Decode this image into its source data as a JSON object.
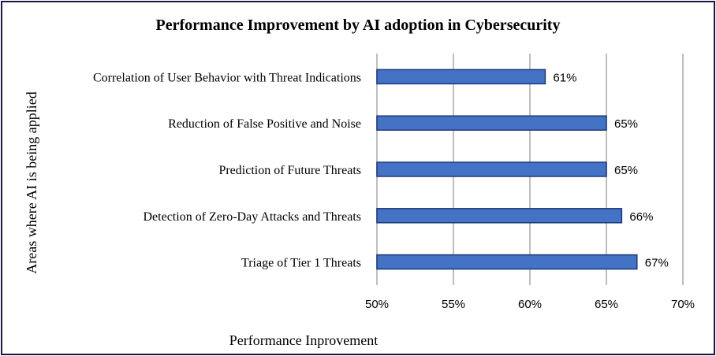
{
  "chart_data": {
    "type": "bar",
    "orientation": "horizontal",
    "title": "Performance Improvement by AI adoption in Cybersecurity",
    "xlabel": "Performance Inprovement",
    "ylabel": "Areas where AI is being applied",
    "categories": [
      "Correlation of User Behavior with Threat Indications",
      "Reduction of False Positive and Noise",
      "Prediction of Future Threats",
      "Detection of Zero-Day Attacks and Threats",
      "Triage of Tier 1 Threats"
    ],
    "values": [
      61,
      65,
      65,
      66,
      67
    ],
    "data_labels": [
      "61%",
      "65%",
      "65%",
      "66%",
      "67%"
    ],
    "xlim": [
      50,
      70
    ],
    "xticks": [
      "50%",
      "55%",
      "60%",
      "65%",
      "70%"
    ],
    "grid": "vertical",
    "legend": "none",
    "colors": {
      "bar_fill": "#4472c4",
      "bar_edge": "#1f3a7a",
      "grid": "#bfbfbf",
      "frame": "#1f1646"
    }
  }
}
